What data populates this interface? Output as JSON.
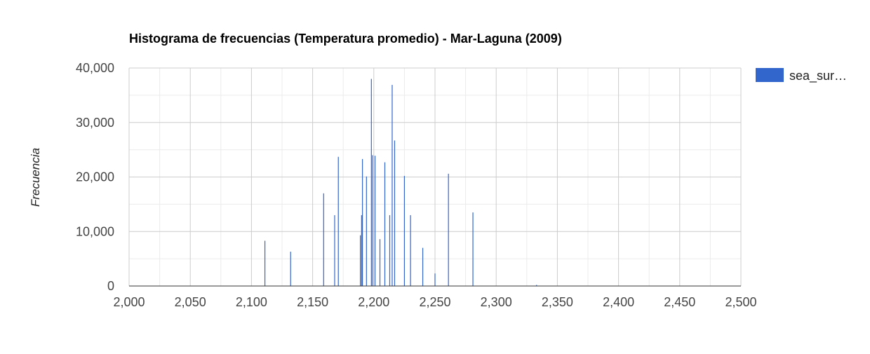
{
  "chart_data": {
    "type": "bar",
    "title": "Histograma de frecuencias (Temperatura promedio) - Mar-Laguna (2009)",
    "xlabel": "",
    "ylabel": "Frecuencia",
    "xlim": [
      2000,
      2500
    ],
    "ylim": [
      0,
      40000
    ],
    "x_ticks": [
      2000,
      2050,
      2100,
      2150,
      2200,
      2250,
      2300,
      2350,
      2400,
      2450,
      2500
    ],
    "x_tick_labels": [
      "2,000",
      "2,050",
      "2,100",
      "2,150",
      "2,200",
      "2,250",
      "2,300",
      "2,350",
      "2,400",
      "2,450",
      "2,500"
    ],
    "y_ticks": [
      0,
      10000,
      20000,
      30000,
      40000
    ],
    "y_tick_labels": [
      "0",
      "10,000",
      "20,000",
      "30,000",
      "40,000"
    ],
    "grid": true,
    "legend_position": "right",
    "series": [
      {
        "name": "sea_sur…",
        "color": "#3366cc",
        "x": [
          2111,
          2132,
          2159,
          2168,
          2171,
          2189,
          2190,
          2190.7,
          2194,
          2198,
          2199,
          2201,
          2205,
          2209,
          2213,
          2215,
          2217,
          2225,
          2230,
          2240,
          2250,
          2261,
          2281,
          2333
        ],
        "values": [
          8300,
          6300,
          17000,
          13000,
          23700,
          9300,
          13000,
          23300,
          20100,
          38000,
          24000,
          23900,
          8600,
          22700,
          13000,
          36900,
          26700,
          20200,
          13000,
          7000,
          2300,
          20600,
          13500,
          200
        ]
      }
    ]
  }
}
